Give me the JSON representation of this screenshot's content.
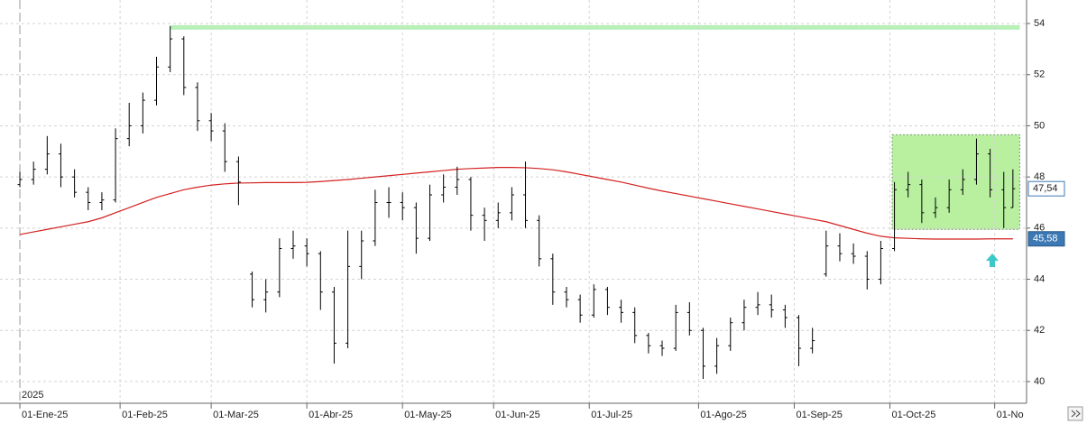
{
  "chart_data": {
    "type": "ohlc",
    "year_label": "2025",
    "x": [
      0,
      3,
      6,
      9,
      12,
      15,
      18,
      21,
      24,
      27,
      30,
      33,
      36,
      39,
      42,
      45,
      48,
      51,
      54,
      57,
      60,
      63,
      66,
      69,
      72,
      75,
      78,
      81,
      84,
      87,
      90,
      93,
      96,
      99,
      102,
      105,
      108,
      111,
      114,
      117,
      120,
      123,
      126,
      129,
      132,
      135,
      138,
      141,
      144,
      147,
      150,
      153,
      156,
      159,
      162,
      165,
      168,
      171,
      174,
      177,
      180,
      183,
      186,
      189,
      192,
      195,
      198,
      201,
      204,
      207,
      210,
      213,
      216,
      218
    ],
    "open": [
      47.7,
      47.9,
      48.3,
      48.9,
      48.0,
      47.4,
      47.0,
      47.1,
      49.5,
      50.0,
      51.0,
      52.3,
      53.4,
      51.5,
      50.2,
      49.8,
      48.6,
      44.2,
      43.2,
      43.5,
      45.2,
      45.3,
      45.0,
      43.5,
      41.5,
      44.5,
      45.5,
      47.0,
      47.0,
      46.8,
      45.6,
      47.3,
      47.6,
      47.9,
      46.5,
      46.3,
      46.6,
      47.3,
      46.3,
      44.8,
      43.5,
      43.2,
      42.6,
      43.6,
      42.9,
      42.7,
      41.8,
      41.4,
      41.3,
      42.7,
      42.0,
      40.6,
      41.4,
      42.3,
      42.9,
      43.0,
      42.8,
      42.5,
      41.3,
      44.2,
      45.3,
      45.0,
      44.9,
      44.0,
      45.2,
      47.5,
      47.7,
      46.6,
      46.8,
      47.5,
      47.9,
      48.9,
      47.5,
      46.8
    ],
    "high": [
      48.2,
      48.6,
      49.6,
      49.3,
      48.3,
      47.6,
      47.4,
      49.9,
      50.9,
      51.3,
      52.7,
      53.9,
      53.5,
      51.7,
      50.5,
      50.1,
      48.8,
      44.3,
      44.0,
      45.6,
      45.9,
      45.6,
      45.1,
      43.7,
      45.9,
      45.9,
      47.5,
      47.6,
      47.4,
      47.0,
      47.7,
      48.1,
      48.4,
      48.0,
      46.8,
      47.0,
      47.6,
      48.6,
      46.5,
      45.0,
      43.7,
      43.4,
      43.8,
      43.7,
      43.2,
      42.9,
      41.9,
      41.6,
      43.0,
      43.1,
      42.1,
      41.7,
      42.5,
      43.2,
      43.5,
      43.4,
      43.0,
      42.6,
      42.1,
      45.9,
      45.8,
      45.4,
      45.1,
      45.5,
      47.8,
      48.2,
      47.9,
      47.2,
      47.9,
      48.3,
      49.5,
      49.1,
      48.2,
      48.3
    ],
    "low": [
      47.6,
      47.7,
      48.1,
      47.6,
      47.2,
      46.7,
      46.7,
      47.0,
      49.2,
      49.7,
      50.8,
      52.1,
      51.2,
      49.8,
      49.4,
      48.2,
      46.9,
      42.9,
      42.7,
      43.3,
      44.8,
      44.5,
      42.8,
      40.7,
      41.3,
      44.0,
      45.3,
      46.4,
      46.3,
      45.0,
      45.5,
      47.0,
      47.3,
      45.9,
      45.5,
      46.0,
      46.3,
      46.0,
      44.5,
      43.0,
      42.9,
      42.3,
      42.5,
      42.6,
      42.3,
      41.5,
      41.1,
      41.0,
      41.2,
      41.8,
      40.1,
      40.3,
      41.2,
      42.0,
      42.6,
      42.5,
      42.1,
      40.6,
      41.1,
      44.1,
      44.7,
      44.6,
      43.6,
      43.8,
      45.1,
      47.2,
      46.2,
      46.4,
      46.6,
      47.3,
      47.7,
      47.2,
      46.0,
      46.8
    ],
    "close": [
      47.9,
      48.3,
      48.9,
      48.0,
      47.4,
      47.0,
      47.1,
      49.5,
      50.0,
      51.0,
      52.3,
      53.4,
      51.5,
      50.2,
      49.8,
      48.6,
      47.8,
      43.2,
      43.5,
      45.2,
      45.3,
      45.0,
      43.5,
      41.5,
      44.5,
      45.5,
      47.0,
      47.0,
      46.8,
      45.6,
      47.3,
      47.6,
      47.9,
      46.5,
      46.3,
      46.6,
      47.3,
      46.3,
      44.8,
      43.5,
      43.2,
      42.6,
      43.6,
      42.9,
      42.7,
      41.8,
      41.4,
      41.3,
      42.7,
      42.0,
      40.6,
      41.4,
      42.3,
      42.9,
      43.0,
      42.8,
      42.5,
      41.3,
      41.6,
      45.3,
      45.0,
      44.9,
      44.0,
      45.2,
      47.5,
      47.7,
      46.6,
      46.8,
      47.5,
      47.9,
      48.9,
      47.5,
      46.8,
      47.54
    ],
    "bar_color": "#000000",
    "moving_average": {
      "color": "#d42020",
      "values": [
        45.75,
        45.85,
        45.95,
        46.05,
        46.15,
        46.25,
        46.4,
        46.6,
        46.8,
        47.0,
        47.2,
        47.35,
        47.5,
        47.6,
        47.68,
        47.73,
        47.76,
        47.77,
        47.78,
        47.78,
        47.78,
        47.79,
        47.82,
        47.86,
        47.9,
        47.95,
        48.0,
        48.05,
        48.1,
        48.15,
        48.2,
        48.25,
        48.3,
        48.33,
        48.35,
        48.37,
        48.37,
        48.36,
        48.33,
        48.28,
        48.2,
        48.1,
        48.0,
        47.9,
        47.8,
        47.68,
        47.56,
        47.45,
        47.35,
        47.25,
        47.15,
        47.05,
        46.95,
        46.85,
        46.75,
        46.65,
        46.55,
        46.45,
        46.35,
        46.25,
        46.1,
        45.95,
        45.8,
        45.68,
        45.62,
        45.6,
        45.58,
        45.57,
        45.57,
        45.57,
        45.57,
        45.58,
        45.58,
        45.58
      ]
    },
    "hline": {
      "y": 53.85,
      "x": [
        33,
        219.5
      ],
      "color": "#b8f0b8"
    },
    "box": {
      "x": [
        191.5,
        219.5
      ],
      "y": [
        45.95,
        49.65
      ],
      "color": "#b8f0a0"
    },
    "price_labels": [
      {
        "value": 47.54,
        "label": "47,54"
      },
      {
        "value": 45.58,
        "label": "45,58"
      }
    ],
    "xlim": [
      -4.36,
      221
    ],
    "ylim": [
      39.15,
      54.92
    ],
    "yticks": [
      40,
      42,
      44,
      46,
      48,
      50,
      52,
      54
    ],
    "xticks": [
      {
        "value": 0,
        "label": "01-Ene-25"
      },
      {
        "value": 22,
        "label": "01-Feb-25"
      },
      {
        "value": 42,
        "label": "01-Mar-25"
      },
      {
        "value": 63,
        "label": "01-Abr-25"
      },
      {
        "value": 84,
        "label": "01-May-25"
      },
      {
        "value": 104,
        "label": "01-Jun-25"
      },
      {
        "value": 125,
        "label": "01-Jul-25"
      },
      {
        "value": 149,
        "label": "01-Ago-25"
      },
      {
        "value": 170,
        "label": "01-Sep-25"
      },
      {
        "value": 191,
        "label": "01-Oct-25"
      },
      {
        "value": 214,
        "label": "01-No"
      }
    ],
    "grid": true
  }
}
